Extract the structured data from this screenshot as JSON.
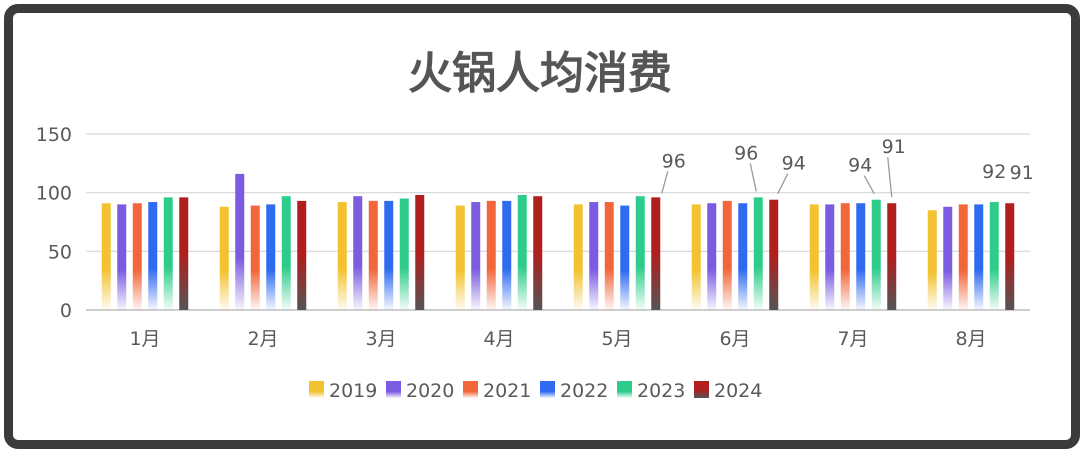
{
  "chart_data": {
    "type": "bar",
    "title": "火锅人均消费",
    "categories": [
      "1月",
      "2月",
      "3月",
      "4月",
      "5月",
      "6月",
      "7月",
      "8月"
    ],
    "ylim": [
      0,
      150
    ],
    "yticks": [
      0,
      50,
      100,
      150
    ],
    "grid": true,
    "legend_position": "bottom",
    "series": [
      {
        "name": "2019",
        "color": "#F2C230",
        "values": [
          91,
          88,
          92,
          89,
          90,
          90,
          90,
          85
        ]
      },
      {
        "name": "2020",
        "color": "#7B5CE0",
        "values": [
          90,
          116,
          97,
          92,
          92,
          91,
          90,
          88
        ]
      },
      {
        "name": "2021",
        "color": "#F2663A",
        "values": [
          91,
          89,
          93,
          93,
          92,
          93,
          91,
          90
        ]
      },
      {
        "name": "2022",
        "color": "#2F6BF0",
        "values": [
          92,
          90,
          93,
          93,
          89,
          91,
          91,
          90
        ]
      },
      {
        "name": "2023",
        "color": "#2ECC8A",
        "values": [
          96,
          97,
          95,
          98,
          97,
          96,
          94,
          92
        ]
      },
      {
        "name": "2024",
        "color": "#B01E1E",
        "values": [
          96,
          93,
          98,
          97,
          96,
          94,
          91,
          91
        ]
      }
    ],
    "data_labels": [
      {
        "text": "96",
        "category": "5月",
        "series": "2024"
      },
      {
        "text": "96",
        "category": "6月",
        "series": "2023"
      },
      {
        "text": "94",
        "category": "6月",
        "series": "2024"
      },
      {
        "text": "94",
        "category": "7月",
        "series": "2023"
      },
      {
        "text": "91",
        "category": "7月",
        "series": "2024"
      },
      {
        "text": "92",
        "category": "8月",
        "series": "2023"
      },
      {
        "text": "91",
        "category": "8月",
        "series": "2024"
      }
    ]
  }
}
